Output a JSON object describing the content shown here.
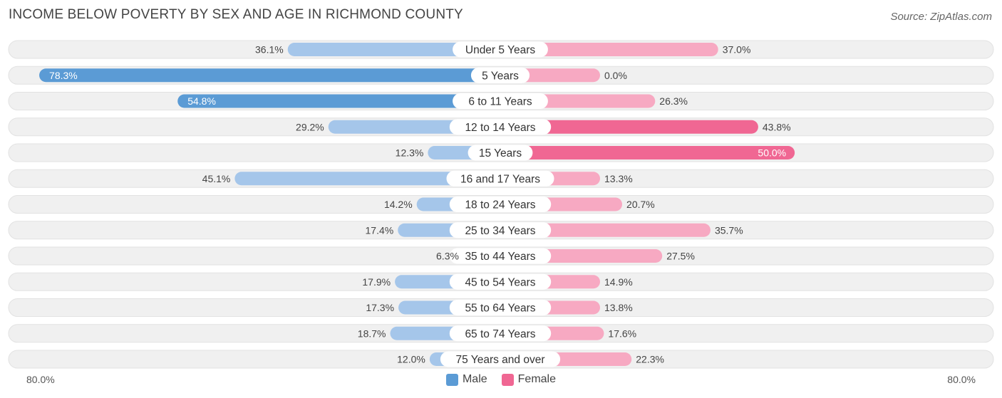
{
  "title": "INCOME BELOW POVERTY BY SEX AND AGE IN RICHMOND COUNTY",
  "source": "Source: ZipAtlas.com",
  "colors": {
    "male_strong": "#5b9bd5",
    "male_light": "#a5c6ea",
    "female_strong": "#f06793",
    "female_light": "#f7a9c2",
    "row_bg": "#f0f0f0",
    "row_border": "#e2e2e2"
  },
  "chart_data": {
    "type": "bar",
    "orientation": "horizontal-diverging",
    "title": "INCOME BELOW POVERTY BY SEX AND AGE IN RICHMOND COUNTY",
    "categories": [
      "Under 5 Years",
      "5 Years",
      "6 to 11 Years",
      "12 to 14 Years",
      "15 Years",
      "16 and 17 Years",
      "18 to 24 Years",
      "25 to 34 Years",
      "35 to 44 Years",
      "45 to 54 Years",
      "55 to 64 Years",
      "65 to 74 Years",
      "75 Years and over"
    ],
    "series": [
      {
        "name": "Male",
        "values": [
          36.1,
          78.3,
          54.8,
          29.2,
          12.3,
          45.1,
          14.2,
          17.4,
          6.3,
          17.9,
          17.3,
          18.7,
          12.0
        ],
        "labels": [
          "36.1%",
          "78.3%",
          "54.8%",
          "29.2%",
          "12.3%",
          "45.1%",
          "14.2%",
          "17.4%",
          "6.3%",
          "17.9%",
          "17.3%",
          "18.7%",
          "12.0%"
        ]
      },
      {
        "name": "Female",
        "values": [
          37.0,
          0.0,
          26.3,
          43.8,
          50.0,
          13.3,
          20.7,
          35.7,
          27.5,
          14.9,
          13.8,
          17.6,
          22.3
        ],
        "labels": [
          "37.0%",
          "0.0%",
          "26.3%",
          "43.8%",
          "50.0%",
          "13.3%",
          "20.7%",
          "35.7%",
          "27.5%",
          "14.9%",
          "13.8%",
          "17.6%",
          "22.3%"
        ]
      }
    ],
    "xlim": [
      -80,
      80
    ],
    "axis_left_label": "80.0%",
    "axis_right_label": "80.0%",
    "legend": [
      "Male",
      "Female"
    ]
  }
}
